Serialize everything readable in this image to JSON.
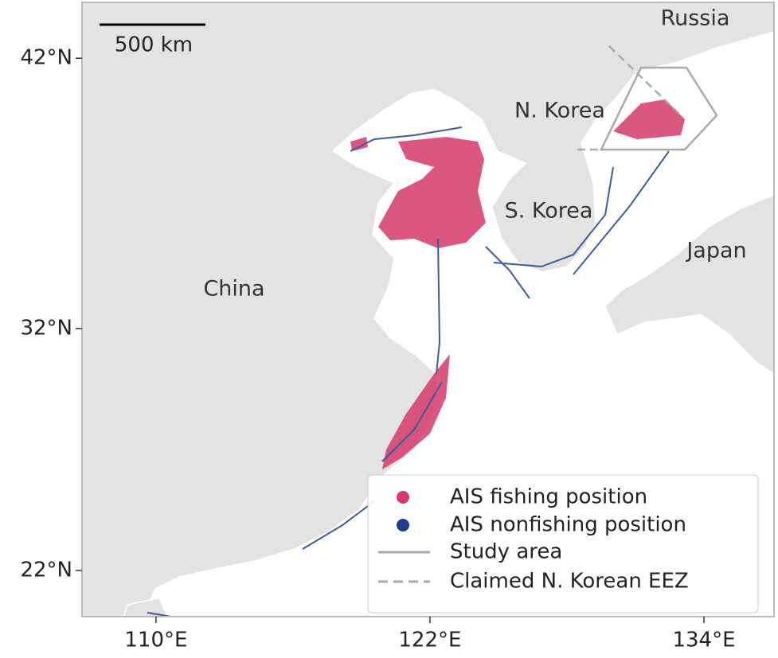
{
  "map": {
    "projection": "mercator",
    "xlim": [
      106.76,
      137.07
    ],
    "ylim": [
      20.0,
      43.9
    ],
    "xticks": [
      {
        "value": 110,
        "label": "110°E"
      },
      {
        "value": 122,
        "label": "122°E"
      },
      {
        "value": 134,
        "label": "134°E"
      }
    ],
    "yticks": [
      {
        "value": 42,
        "label": "42°N"
      },
      {
        "value": 32,
        "label": "32°N"
      },
      {
        "value": 22,
        "label": "22°N"
      }
    ],
    "scale_bar": "500 km",
    "places": [
      "Russia",
      "N. Korea",
      "S. Korea",
      "Japan",
      "China"
    ],
    "legend": [
      {
        "label": "AIS fishing position",
        "color": "#d63a6a",
        "marker": "dot"
      },
      {
        "label": "AIS nonfishing position",
        "color": "#1f3f8c",
        "marker": "dot"
      },
      {
        "label": "Study area",
        "color": "#aaaaaa",
        "marker": "line"
      },
      {
        "label": "Claimed N. Korean EEZ",
        "color": "#aaaaaa",
        "marker": "dashed"
      }
    ]
  }
}
